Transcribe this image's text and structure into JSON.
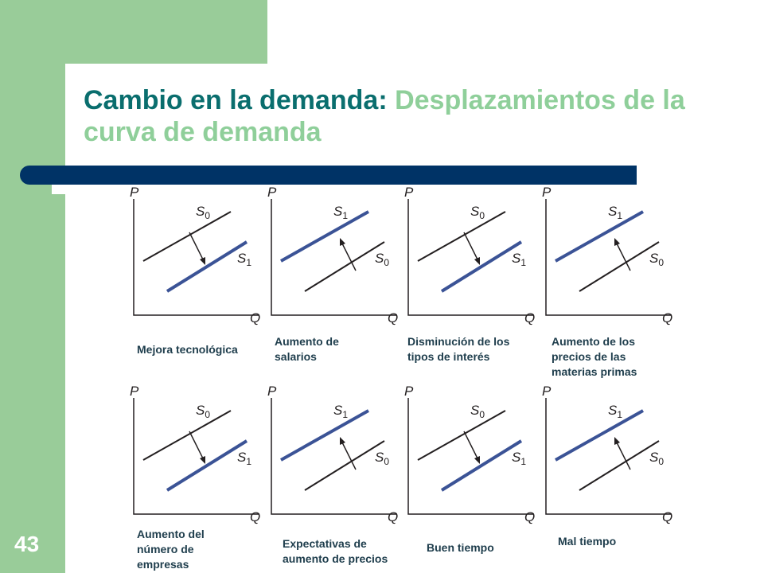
{
  "title": {
    "part1": "Cambio en la demanda:",
    "part2": "Desplazamientos de la curva de demanda"
  },
  "slide_number": "43",
  "axis": {
    "y_label": "P",
    "x_label": "Q",
    "curve_base": "S"
  },
  "colors": {
    "original_curve": "#231f20",
    "new_curve": "#3b5396",
    "title_dark": "#0a6e6e",
    "title_light": "#8fcf9a",
    "bar": "#003366",
    "green": "#99cc99"
  },
  "panels": [
    {
      "caption": "Mejora tecnológica",
      "shift": "down"
    },
    {
      "caption": "Aumento de\nsalarios",
      "shift": "up"
    },
    {
      "caption": "Disminución de los\ntipos de interés",
      "shift": "down"
    },
    {
      "caption": "Aumento de los\nprecios de las\nmaterias primas",
      "shift": "up"
    },
    {
      "caption": "Aumento del\nnúmero de\nempresas",
      "shift": "down"
    },
    {
      "caption": "Expectativas de\naumento de precios",
      "shift": "up"
    },
    {
      "caption": "Buen tiempo",
      "shift": "down"
    },
    {
      "caption": "Mal tiempo",
      "shift": "up"
    }
  ]
}
